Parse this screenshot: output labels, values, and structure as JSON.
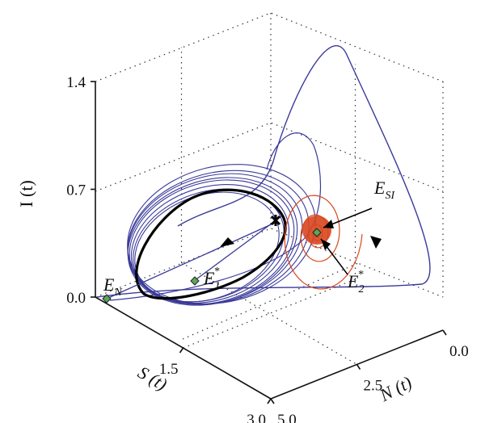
{
  "chart_data": {
    "type": "line",
    "title": "",
    "axes": {
      "I": {
        "label": "I (t)",
        "ticks": [
          "0.0",
          "0.7",
          "1.4"
        ],
        "range": [
          0,
          1.4
        ]
      },
      "S": {
        "label": "S (t)",
        "ticks": [
          "1.5",
          "3.0"
        ],
        "range": [
          0,
          3.0
        ]
      },
      "N": {
        "label": "N (t)",
        "ticks": [
          "0.0",
          "2.5",
          "5.0"
        ],
        "range": [
          0,
          5.0
        ]
      }
    },
    "grid": true,
    "series": [
      {
        "color": "#3a3a9a",
        "style": "trajectories spiralling onto limit cycle"
      },
      {
        "color": "#d8461f",
        "style": "trajectories converging to E_SI"
      },
      {
        "color": "#000000",
        "style": "limit cycle"
      }
    ],
    "equilibria": [
      {
        "base": "E",
        "sub": "N",
        "sup": ""
      },
      {
        "base": "E",
        "sub": "1",
        "sup": "*"
      },
      {
        "base": "E",
        "sub": "2",
        "sup": "*"
      },
      {
        "base": "E",
        "sub": "SI",
        "sup": ""
      }
    ],
    "colors": {
      "blue": "#3a3a9a",
      "red": "#d8461f",
      "black": "#000000",
      "marker": "#5aa85a"
    }
  }
}
